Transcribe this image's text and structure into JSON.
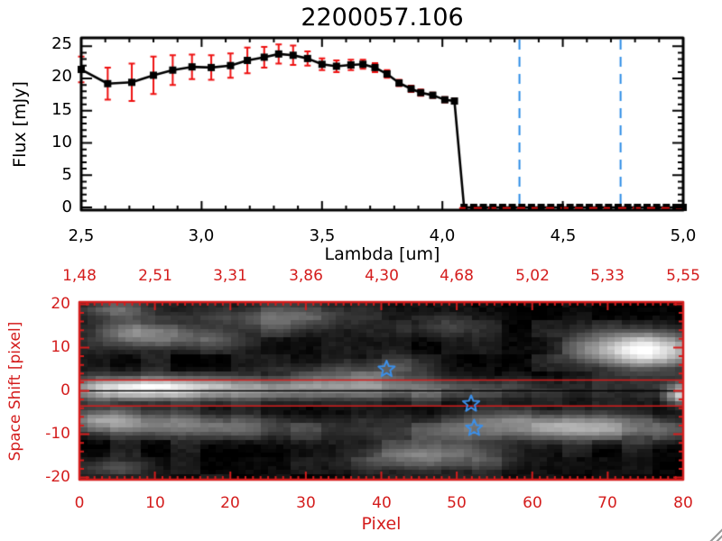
{
  "title": "2200057.106",
  "colors": {
    "background": "#ffffff",
    "axis_black": "#000000",
    "red": "#d41d1d",
    "error_red": "#ee1111",
    "blue_dash": "#2b8ce6",
    "star_blue": "#3c8fe8"
  },
  "chart_data": [
    {
      "type": "line",
      "name": "spectrum",
      "title": "2200057.106",
      "xlabel": "Lambda [um]",
      "ylabel": "Flux [mJy]",
      "xlim": [
        2.5,
        5.0
      ],
      "ylim": [
        0,
        26.3
      ],
      "x_ticks": [
        2.5,
        3.0,
        3.5,
        4.0,
        4.5,
        5.0
      ],
      "x_tick_labels": [
        "2,5",
        "3,0",
        "3,5",
        "4,0",
        "4,5",
        "5,0"
      ],
      "y_ticks": [
        0,
        5,
        10,
        15,
        20,
        25
      ],
      "y_tick_labels": [
        "0",
        "5",
        "10",
        "15",
        "20",
        "25"
      ],
      "grid": false,
      "points": [
        {
          "lambda": 2.5,
          "flux": 21.4,
          "err": 2.0
        },
        {
          "lambda": 2.61,
          "flux": 19.2,
          "err": 2.5
        },
        {
          "lambda": 2.71,
          "flux": 19.4,
          "err": 2.9
        },
        {
          "lambda": 2.8,
          "flux": 20.5,
          "err": 2.9
        },
        {
          "lambda": 2.88,
          "flux": 21.3,
          "err": 2.3
        },
        {
          "lambda": 2.96,
          "flux": 21.8,
          "err": 1.9
        },
        {
          "lambda": 3.04,
          "flux": 21.7,
          "err": 1.9
        },
        {
          "lambda": 3.12,
          "flux": 22.0,
          "err": 1.9
        },
        {
          "lambda": 3.19,
          "flux": 22.8,
          "err": 2.0
        },
        {
          "lambda": 3.26,
          "flux": 23.3,
          "err": 1.6
        },
        {
          "lambda": 3.32,
          "flux": 23.8,
          "err": 1.5
        },
        {
          "lambda": 3.38,
          "flux": 23.6,
          "err": 1.5
        },
        {
          "lambda": 3.44,
          "flux": 23.1,
          "err": 1.1
        },
        {
          "lambda": 3.5,
          "flux": 22.2,
          "err": 0.9
        },
        {
          "lambda": 3.56,
          "flux": 21.9,
          "err": 0.9
        },
        {
          "lambda": 3.62,
          "flux": 22.1,
          "err": 0.8
        },
        {
          "lambda": 3.67,
          "flux": 22.2,
          "err": 0.7
        },
        {
          "lambda": 3.72,
          "flux": 21.7,
          "err": 0.7
        },
        {
          "lambda": 3.77,
          "flux": 20.7,
          "err": 0.6
        },
        {
          "lambda": 3.82,
          "flux": 19.3,
          "err": 0.5
        },
        {
          "lambda": 3.87,
          "flux": 18.4,
          "err": 0.5
        },
        {
          "lambda": 3.91,
          "flux": 17.8,
          "err": 0.5
        },
        {
          "lambda": 3.96,
          "flux": 17.4,
          "err": 0.4
        },
        {
          "lambda": 4.01,
          "flux": 16.7,
          "err": 0.4
        },
        {
          "lambda": 4.05,
          "flux": 16.5,
          "err": 0.4
        }
      ],
      "zero_points": [
        4.09,
        4.13,
        4.17,
        4.21,
        4.25,
        4.29,
        4.33,
        4.37,
        4.41,
        4.45,
        4.49,
        4.53,
        4.57,
        4.61,
        4.65,
        4.69,
        4.73,
        4.77,
        4.81,
        4.85,
        4.89,
        4.93,
        4.97,
        5.0
      ],
      "zero_dashed_line": {
        "y": 0,
        "x_start": 4.07,
        "x_end": 5.0,
        "color": "red"
      },
      "dashed_vlines": [
        {
          "x": 4.32
        },
        {
          "x": 4.74
        }
      ]
    },
    {
      "type": "heatmap",
      "name": "space-shift-image",
      "xlabel": "Pixel",
      "ylabel": "Space Shift [pixel]",
      "xlim": [
        0,
        80
      ],
      "ylim": [
        -20.5,
        20.5
      ],
      "x_ticks": [
        0,
        10,
        20,
        30,
        40,
        50,
        60,
        70,
        80
      ],
      "x_tick_labels": [
        "0",
        "10",
        "20",
        "30",
        "40",
        "50",
        "60",
        "70",
        "80"
      ],
      "y_ticks": [
        20,
        10,
        0,
        -10,
        -20
      ],
      "y_tick_labels": [
        "20",
        "10",
        "0",
        "-10",
        "-20"
      ],
      "top_axis_tick_labels": [
        "1,48",
        "2,51",
        "3,31",
        "3,86",
        "4,30",
        "4,68",
        "5,02",
        "5,33",
        "5,55"
      ],
      "trace": {
        "center": 0.5,
        "sigma": 1.8,
        "profile": [
          [
            0,
            0.5
          ],
          [
            2,
            0.75
          ],
          [
            5,
            0.95
          ],
          [
            8,
            1.0
          ],
          [
            12,
            0.92
          ],
          [
            16,
            0.72
          ],
          [
            20,
            0.6
          ],
          [
            25,
            0.52
          ],
          [
            30,
            0.47
          ],
          [
            35,
            0.44
          ],
          [
            40,
            0.42
          ],
          [
            45,
            0.38
          ],
          [
            50,
            0.3
          ],
          [
            55,
            0.24
          ],
          [
            60,
            0.16
          ],
          [
            65,
            0.1
          ],
          [
            70,
            0.07
          ],
          [
            74,
            0.08
          ],
          [
            78,
            0.1
          ],
          [
            80,
            0.12
          ]
        ]
      },
      "blobs": [
        [
          4,
          19,
          3,
          1.5,
          0.3
        ],
        [
          8,
          13.5,
          4.5,
          2.0,
          0.5
        ],
        [
          17,
          12,
          4,
          1.8,
          0.2
        ],
        [
          26,
          17,
          6,
          2.2,
          0.32
        ],
        [
          34,
          3.5,
          5,
          2.0,
          0.2
        ],
        [
          41,
          5.5,
          4,
          2.2,
          0.18
        ],
        [
          48,
          15,
          4,
          1.8,
          0.2
        ],
        [
          68,
          10,
          4,
          2.5,
          0.3
        ],
        [
          75.5,
          9.5,
          4.5,
          2.8,
          0.95
        ],
        [
          79.5,
          -1,
          1.6,
          1.6,
          0.75
        ],
        [
          2,
          -7,
          3,
          2.0,
          0.4
        ],
        [
          9,
          -7.5,
          6,
          2.0,
          0.35
        ],
        [
          20,
          -8.5,
          6,
          2.0,
          0.28
        ],
        [
          33,
          -9,
          6,
          2.0,
          0.14
        ],
        [
          44,
          -9.5,
          5,
          2.0,
          0.15
        ],
        [
          56,
          -8,
          6,
          2.2,
          0.4
        ],
        [
          66,
          -8.5,
          5,
          2.0,
          0.45
        ],
        [
          75,
          -9,
          5,
          2.0,
          0.3
        ],
        [
          42,
          -15.5,
          4.5,
          2.0,
          0.32
        ],
        [
          51,
          -15,
          5,
          2.5,
          0.28
        ],
        [
          4,
          -18,
          3.5,
          1.5,
          0.26
        ]
      ],
      "noise_amp": 0.12,
      "aperture_lines_y": [
        2.5,
        -3.5
      ],
      "center_line_y": 0,
      "stars": [
        {
          "x": 40.7,
          "y": 5.0
        },
        {
          "x": 51.9,
          "y": -3.0
        },
        {
          "x": 52.3,
          "y": -8.6
        }
      ]
    }
  ]
}
